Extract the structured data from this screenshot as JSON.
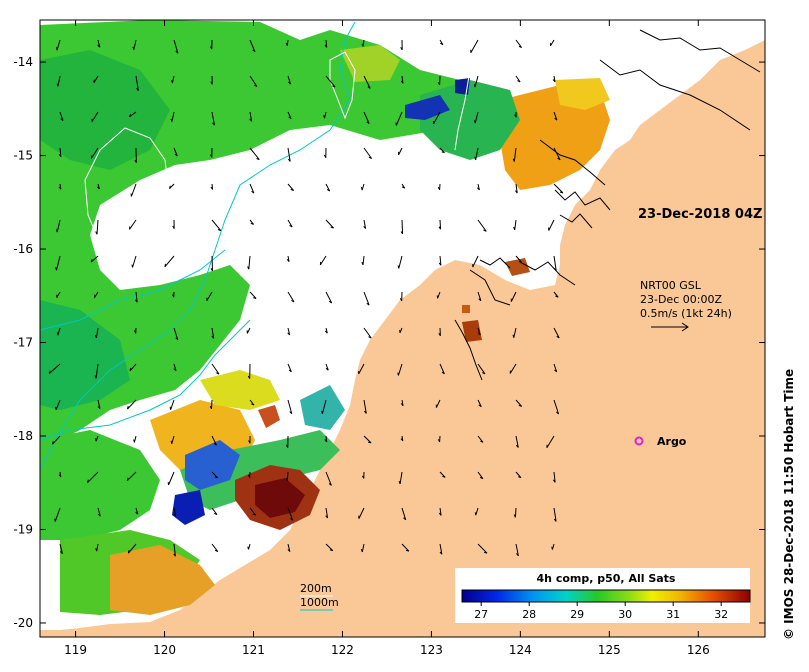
{
  "map": {
    "lon_ticks": [
      "119",
      "120",
      "121",
      "122",
      "123",
      "124",
      "125",
      "126"
    ],
    "lat_ticks": [
      "-14",
      "-15",
      "-16",
      "-17",
      "-18",
      "-19",
      "-20"
    ],
    "lon_range": [
      118.6,
      126.75
    ],
    "lat_range": [
      -20.15,
      -13.55
    ]
  },
  "annotations": {
    "pass_time": "23-Dec-2018 04Z",
    "current_source": "NRT00 GSL",
    "current_time": "23-Dec 00:00Z",
    "current_scale": "0.5m/s (1kt 24h)",
    "argo_label": "Argo"
  },
  "depth_legend": {
    "d200": "200m",
    "d1000": "1000m",
    "color_200": "#ffffff",
    "color_1000": "#00c8c8"
  },
  "colorbar": {
    "title": "4h comp, p50, All Sats",
    "ticks": [
      "27",
      "28",
      "29",
      "30",
      "31",
      "32"
    ],
    "range": [
      26.6,
      32.6
    ]
  },
  "credit": "© IMOS 28-Dec-2018 11:50 Hobart Time",
  "colors": {
    "land": "#fac896",
    "ocean_nodata": "#ffffff",
    "argo": "#e020e0"
  }
}
